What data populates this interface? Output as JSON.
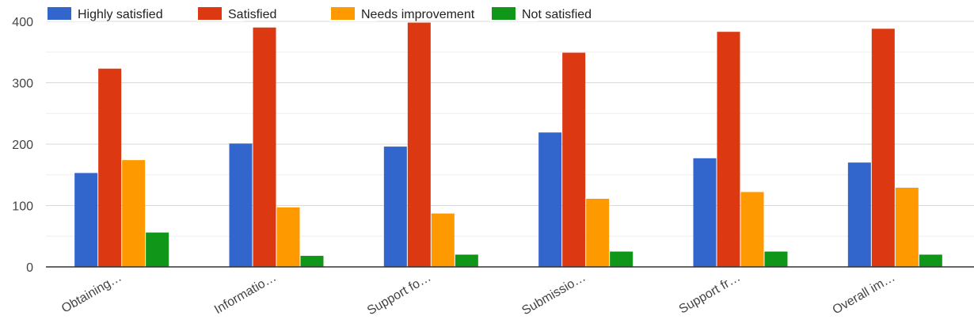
{
  "chart_data": {
    "type": "bar",
    "categories": [
      "Obtaining…",
      "Informatio…",
      "Support fo…",
      "Submissio…",
      "Support fr…",
      "Overall im…"
    ],
    "series": [
      {
        "name": "Highly satisfied",
        "color": "#3366cc",
        "values": [
          153,
          201,
          196,
          219,
          177,
          170
        ]
      },
      {
        "name": "Satisfied",
        "color": "#dc3912",
        "values": [
          323,
          390,
          398,
          349,
          383,
          388
        ]
      },
      {
        "name": "Needs improvement",
        "color": "#ff9900",
        "values": [
          174,
          97,
          87,
          111,
          122,
          129
        ]
      },
      {
        "name": "Not satisfied",
        "color": "#109618",
        "values": [
          56,
          18,
          20,
          25,
          25,
          20
        ]
      }
    ],
    "ylim": [
      0,
      400
    ],
    "yticks": [
      0,
      100,
      200,
      300,
      400
    ],
    "grid": true,
    "minor_grid": true,
    "legend_position": "top-left",
    "xlabel": "",
    "ylabel": "",
    "title": ""
  }
}
